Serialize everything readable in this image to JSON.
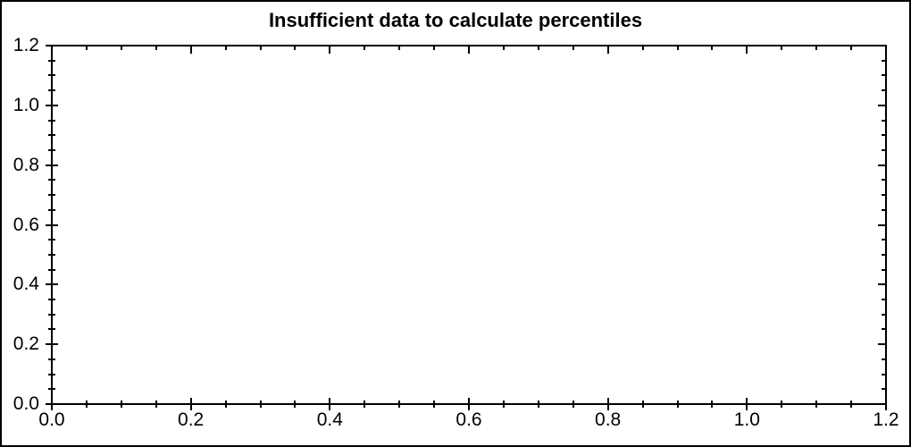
{
  "chart_data": {
    "type": "scatter",
    "title": "Insufficient data to calculate percentiles",
    "series": [],
    "xlabel": "",
    "ylabel": "",
    "xlim": [
      0,
      1.2
    ],
    "ylim": [
      0,
      1.2
    ],
    "x_major_ticks": [
      0,
      0.2,
      0.4,
      0.6,
      0.8,
      1.0,
      1.2
    ],
    "y_major_ticks": [
      0,
      0.2,
      0.4,
      0.6,
      0.8,
      1.0,
      1.2
    ],
    "x_tick_labels": [
      "0.0",
      "0.2",
      "0.4",
      "0.6",
      "0.8",
      "1.0",
      "1.2"
    ],
    "y_tick_labels": [
      "0.0",
      "0.2",
      "0.4",
      "0.6",
      "0.8",
      "1.0",
      "1.2"
    ],
    "minor_tick_step": 0.05,
    "grid": false,
    "legend": false,
    "frame": "full-box",
    "tick_style": {
      "left_bottom": "crossing",
      "top_right": "inward"
    },
    "colors": {
      "background": "#ffffff",
      "axis": "#000000",
      "text": "#000000"
    }
  }
}
